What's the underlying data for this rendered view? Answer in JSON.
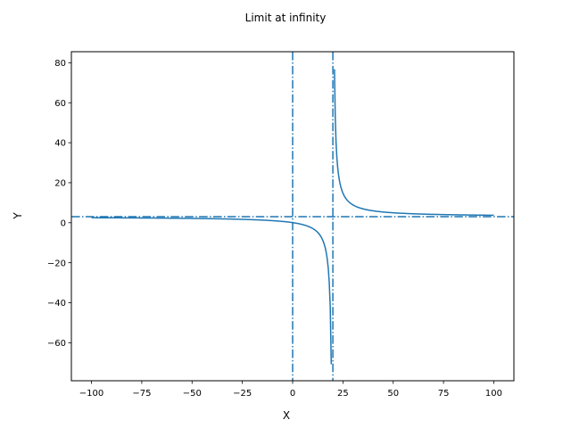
{
  "chart_data": {
    "type": "line",
    "title": "Limit at infinity",
    "xlabel": "X",
    "ylabel": "Y",
    "xlim": [
      -110,
      110
    ],
    "ylim": [
      -79,
      85.5
    ],
    "xticks": [
      -100,
      -75,
      -50,
      -25,
      0,
      25,
      50,
      75,
      100
    ],
    "xtick_labels": [
      "−100",
      "−75",
      "−50",
      "−25",
      "0",
      "25",
      "50",
      "75",
      "100"
    ],
    "yticks": [
      -60,
      -40,
      -20,
      0,
      20,
      40,
      60,
      80
    ],
    "ytick_labels": [
      "−60",
      "−40",
      "−20",
      "0",
      "20",
      "40",
      "60",
      "80"
    ],
    "grid": false,
    "color": "#1f77b4",
    "series": [
      {
        "style": "solid",
        "function": "(3x - 1) / (x - 20)",
        "segments": [
          {
            "x_range": [
              -100,
              19.2
            ],
            "samples": 240
          },
          {
            "x_range": [
              20.8,
              100
            ],
            "samples": 200
          }
        ]
      },
      {
        "style": "dash-dot",
        "orientation": "vertical",
        "x": 0
      },
      {
        "style": "dash-dot",
        "orientation": "vertical",
        "x": 20
      },
      {
        "style": "dash-dot",
        "orientation": "horizontal",
        "y": 3
      }
    ]
  }
}
